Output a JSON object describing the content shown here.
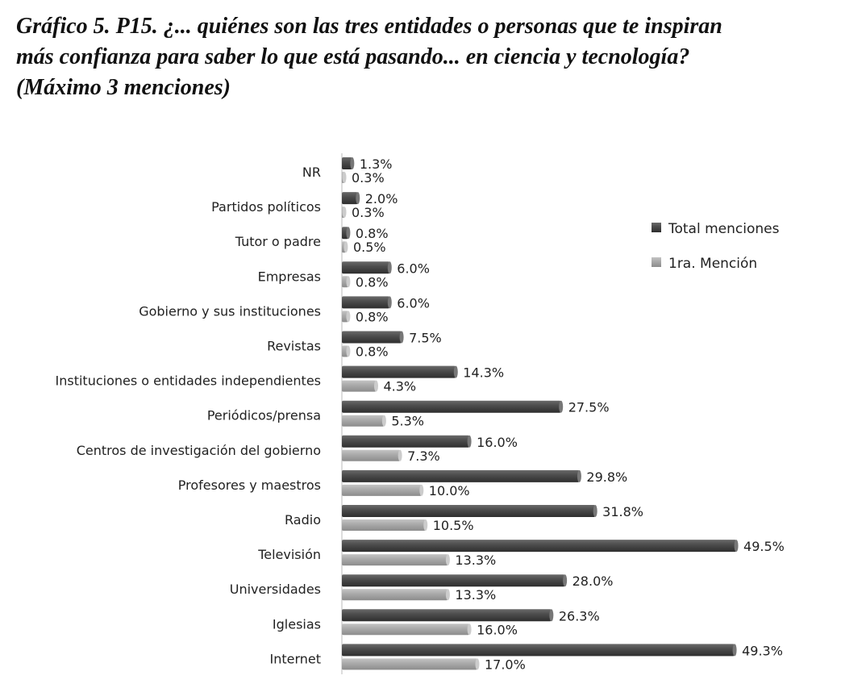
{
  "title_lines": [
    "Gráfico 5. P15. ¿... quiénes son las tres entidades o personas que te inspiran",
    "más confianza para saber lo que está pasando... en ciencia y tecnología?",
    "(Máximo 3 menciones)"
  ],
  "chart_data": {
    "type": "bar",
    "orientation": "horizontal",
    "title": "Gráfico 5. P15. ¿... quiénes son las tres entidades o personas que te inspiran más confianza para saber lo que está pasando... en ciencia y tecnología? (Máximo 3 menciones)",
    "categories": [
      "NR",
      "Partidos políticos",
      "Tutor o padre",
      "Empresas",
      "Gobierno y sus instituciones",
      "Revistas",
      "Instituciones o entidades independientes",
      "Periódicos/prensa",
      "Centros de investigación del gobierno",
      "Profesores y maestros",
      "Radio",
      "Televisión",
      "Universidades",
      "Iglesias",
      "Internet"
    ],
    "series": [
      {
        "name": "Total menciones",
        "color": "#4a4a4a",
        "values": [
          1.3,
          2.0,
          0.8,
          6.0,
          6.0,
          7.5,
          14.3,
          27.5,
          16.0,
          29.8,
          31.8,
          49.5,
          28.0,
          26.3,
          49.3
        ]
      },
      {
        "name": "1ra. Mención",
        "color": "#a9a9a9",
        "values": [
          0.3,
          0.3,
          0.5,
          0.8,
          0.8,
          0.8,
          4.3,
          5.3,
          7.3,
          10.0,
          10.5,
          13.3,
          13.3,
          16.0,
          17.0
        ]
      }
    ],
    "value_format": "%",
    "legend": "right",
    "grid": false,
    "xlim": [
      0,
      50
    ]
  }
}
